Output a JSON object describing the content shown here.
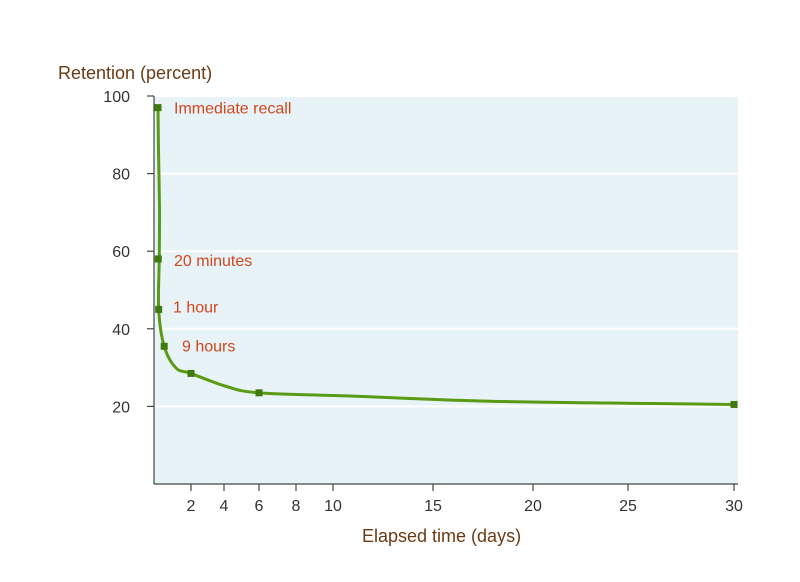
{
  "chart_data": {
    "type": "line",
    "title": "",
    "ylabel": "Retention (percent)",
    "xlabel": "Elapsed time (days)",
    "ylim": [
      0,
      100
    ],
    "xlim": [
      0,
      30
    ],
    "x_scale": "piecewise (expanded 0–10, compressed 10–30)",
    "y_ticks": [
      20,
      40,
      60,
      80,
      100
    ],
    "x_ticks": [
      2,
      4,
      6,
      8,
      10,
      15,
      20,
      25,
      30
    ],
    "grid": "horizontal",
    "colors": {
      "line": "#5a9a14",
      "marker": "#3f7a0c",
      "plot_bg": "#e8f3f8",
      "annotation": "#d0471c",
      "axis_label": "#6b3a12"
    },
    "series": [
      {
        "points": [
          {
            "x": 0.0,
            "y": 97
          },
          {
            "x": 0.014,
            "y": 58
          },
          {
            "x": 0.042,
            "y": 45
          },
          {
            "x": 0.375,
            "y": 35.5
          },
          {
            "x": 2,
            "y": 28.5
          },
          {
            "x": 6,
            "y": 23.5
          },
          {
            "x": 30,
            "y": 20.5
          }
        ]
      }
    ],
    "annotations": [
      {
        "label": "Immediate recall",
        "x": 0.0,
        "y": 97
      },
      {
        "label": "20 minutes",
        "x": 0.014,
        "y": 58
      },
      {
        "label": "1 hour",
        "x": 0.042,
        "y": 45
      },
      {
        "label": "9 hours",
        "x": 0.375,
        "y": 35.5
      }
    ]
  }
}
